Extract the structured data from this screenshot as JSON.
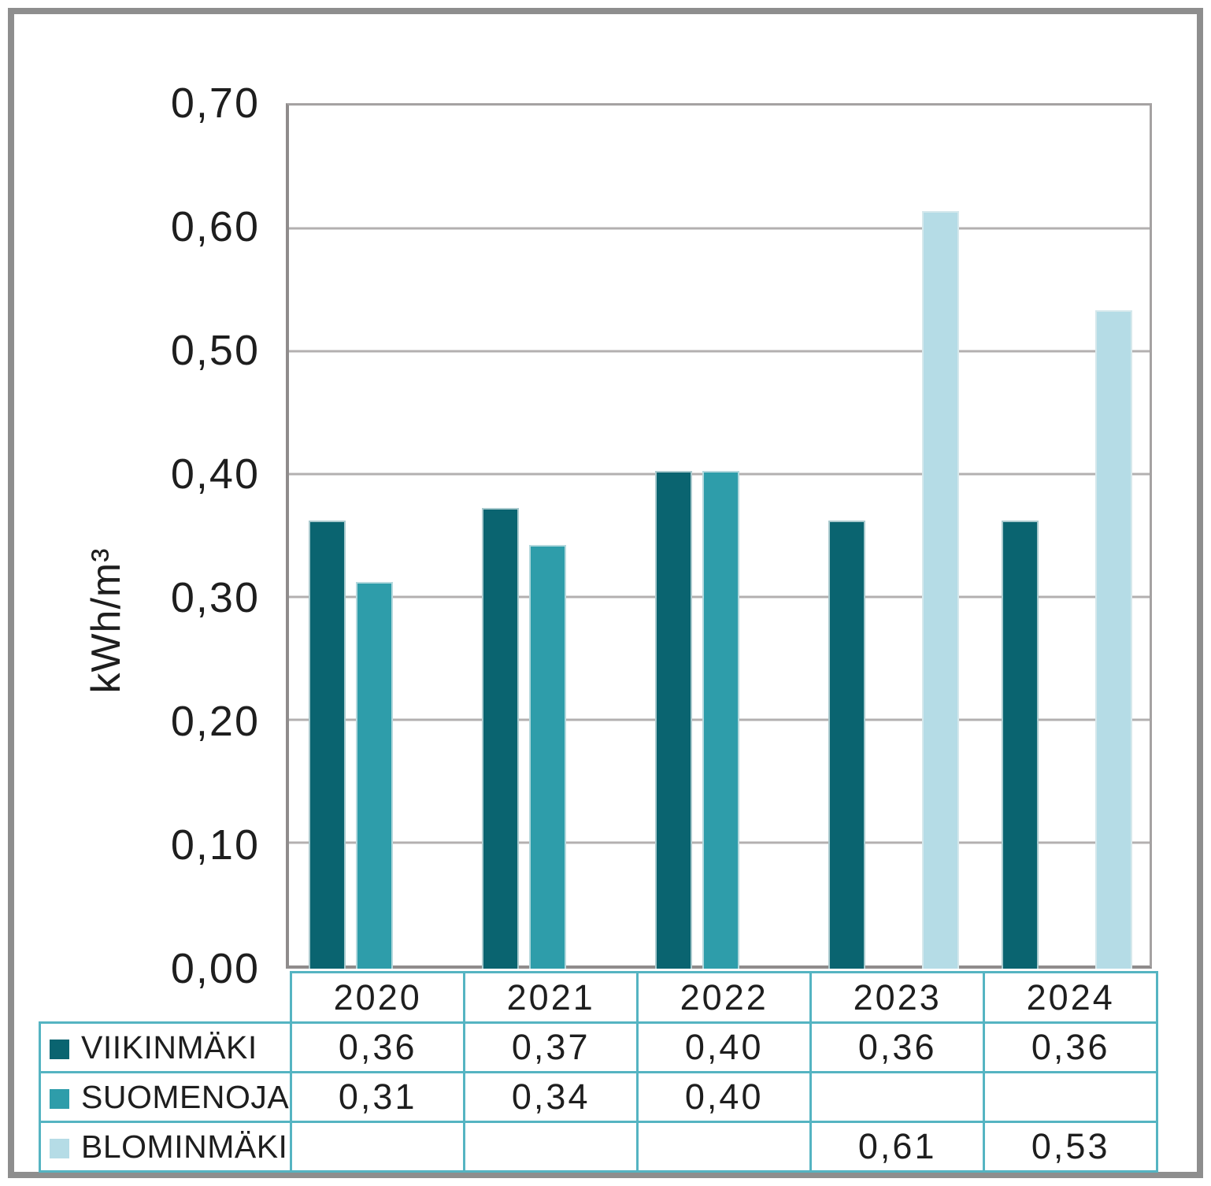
{
  "chart_data": {
    "type": "bar",
    "title": "",
    "xlabel": "",
    "ylabel": "kWh/m³",
    "ylim": [
      0,
      0.7
    ],
    "y_tick_step": 0.1,
    "y_tick_labels": [
      "0,70",
      "0,60",
      "0,50",
      "0,40",
      "0,30",
      "0,20",
      "0,10",
      "0,00"
    ],
    "grid": true,
    "legend_position": "table-left-below-chart",
    "categories": [
      "2020",
      "2021",
      "2022",
      "2023",
      "2024"
    ],
    "series": [
      {
        "name": "VIIKINMÄKI",
        "color": "#0A6470",
        "values": [
          0.36,
          0.37,
          0.4,
          0.36,
          0.36
        ],
        "display": [
          "0,36",
          "0,37",
          "0,40",
          "0,36",
          "0,36"
        ]
      },
      {
        "name": "SUOMENOJA",
        "color": "#2E9DAA",
        "values": [
          0.31,
          0.34,
          0.4,
          null,
          null
        ],
        "display": [
          "0,31",
          "0,34",
          "0,40",
          "",
          ""
        ]
      },
      {
        "name": "BLOMINMÄKI",
        "color": "#B5DCE6",
        "values": [
          null,
          null,
          null,
          0.61,
          0.53
        ],
        "display": [
          "",
          "",
          "",
          "0,61",
          "0,53"
        ]
      }
    ]
  },
  "colors": {
    "grid": "#B3B0B0",
    "axis": "#A5A2A2",
    "axis_strong": "#8F8C8C",
    "table_border": "#55B4C2",
    "frame": "#8E8E8E",
    "text": "#1E1E1E"
  }
}
